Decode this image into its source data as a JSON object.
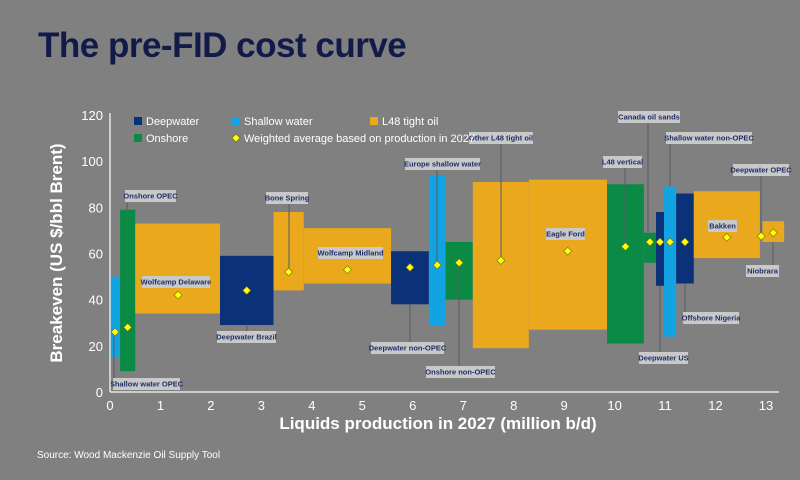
{
  "title": "The pre-FID cost curve",
  "source": "Source: Wood Mackenzie Oil Supply Tool",
  "chart_data": {
    "type": "bar",
    "subtype": "variable-width cost curve",
    "xlabel": "Liquids production in 2027 (million b/d)",
    "ylabel": "Breakeven (US $/bbl Brent)",
    "xlim": [
      0,
      13
    ],
    "ylim": [
      0,
      120
    ],
    "xticks": [
      0,
      1,
      2,
      3,
      4,
      5,
      6,
      7,
      8,
      9,
      10,
      11,
      12,
      13
    ],
    "yticks": [
      0,
      20,
      40,
      60,
      80,
      100,
      120
    ],
    "grid": false,
    "legend_placement": "top",
    "legend": [
      {
        "name": "Deepwater",
        "color": "#0b3278",
        "marker": "square"
      },
      {
        "name": "Shallow water",
        "color": "#12a3e2",
        "marker": "square"
      },
      {
        "name": "L48 tight oil",
        "color": "#eaa81c",
        "marker": "square"
      },
      {
        "name": "Onshore",
        "color": "#0a8a45",
        "marker": "square"
      },
      {
        "name": "Weighted average based on production in 2027",
        "color": "#ffff00",
        "marker": "diamond"
      }
    ],
    "segments": [
      {
        "name": "Shallow water OPEC",
        "category": "Shallow water",
        "x0": 0.0,
        "x1": 0.2,
        "low": 15,
        "high": 50,
        "avg": 26
      },
      {
        "name": "Onshore OPEC",
        "category": "Onshore",
        "x0": 0.2,
        "x1": 0.5,
        "low": 9,
        "high": 79,
        "avg": 28
      },
      {
        "name": "Wolfcamp Delaware",
        "category": "L48 tight oil",
        "x0": 0.5,
        "x1": 2.18,
        "low": 34,
        "high": 73,
        "avg": 42
      },
      {
        "name": "Deepwater Brazil",
        "category": "Deepwater",
        "x0": 2.18,
        "x1": 3.24,
        "low": 29,
        "high": 59,
        "avg": 44
      },
      {
        "name": "Bone Spring",
        "category": "L48 tight oil",
        "x0": 3.24,
        "x1": 3.84,
        "low": 44,
        "high": 78,
        "avg": 52
      },
      {
        "name": "Wolfcamp Midland",
        "category": "L48 tight oil",
        "x0": 3.84,
        "x1": 5.57,
        "low": 47,
        "high": 71,
        "avg": 53
      },
      {
        "name": "Deepwater non-OPEC",
        "category": "Deepwater",
        "x0": 5.57,
        "x1": 6.32,
        "low": 38,
        "high": 61,
        "avg": 54
      },
      {
        "name": "Europe shallow water",
        "category": "Shallow water",
        "x0": 6.32,
        "x1": 6.65,
        "low": 29,
        "high": 94,
        "avg": 55
      },
      {
        "name": "Onshore non-OPEC",
        "category": "Onshore",
        "x0": 6.65,
        "x1": 7.19,
        "low": 40,
        "high": 65,
        "avg": 56
      },
      {
        "name": "Other L48 tight oil",
        "category": "L48 tight oil",
        "x0": 7.19,
        "x1": 8.3,
        "low": 19,
        "high": 91,
        "avg": 57
      },
      {
        "name": "Eagle Ford",
        "category": "L48 tight oil",
        "x0": 8.3,
        "x1": 9.85,
        "low": 27,
        "high": 92,
        "avg": 61
      },
      {
        "name": "L48 vertical",
        "category": "Onshore",
        "x0": 9.85,
        "x1": 10.58,
        "low": 21,
        "high": 90,
        "avg": 63
      },
      {
        "name": "Canada oil sands",
        "category": "Onshore",
        "x0": 10.58,
        "x1": 10.82,
        "low": 56,
        "high": 69,
        "avg": 65
      },
      {
        "name": "Deepwater US",
        "category": "Deepwater",
        "x0": 10.82,
        "x1": 10.98,
        "low": 46,
        "high": 78,
        "avg": 65
      },
      {
        "name": "Shallow water non-OPEC",
        "category": "Shallow water",
        "x0": 10.98,
        "x1": 11.22,
        "low": 24,
        "high": 89,
        "avg": 65
      },
      {
        "name": "Offshore Nigeria",
        "category": "Deepwater",
        "x0": 11.22,
        "x1": 11.57,
        "low": 47,
        "high": 86,
        "avg": 65
      },
      {
        "name": "Bakken",
        "category": "L48 tight oil",
        "x0": 11.57,
        "x1": 12.88,
        "low": 58,
        "high": 87,
        "avg": 67
      },
      {
        "name": "Deepwater OPEC",
        "category": "Deepwater",
        "x0": 12.88,
        "x1": 12.93,
        "low": 67,
        "high": 68,
        "avg": 67.5
      },
      {
        "name": "Niobrara",
        "category": "L48 tight oil",
        "x0": 12.93,
        "x1": 13.36,
        "low": 65,
        "high": 74,
        "avg": 69
      }
    ]
  }
}
